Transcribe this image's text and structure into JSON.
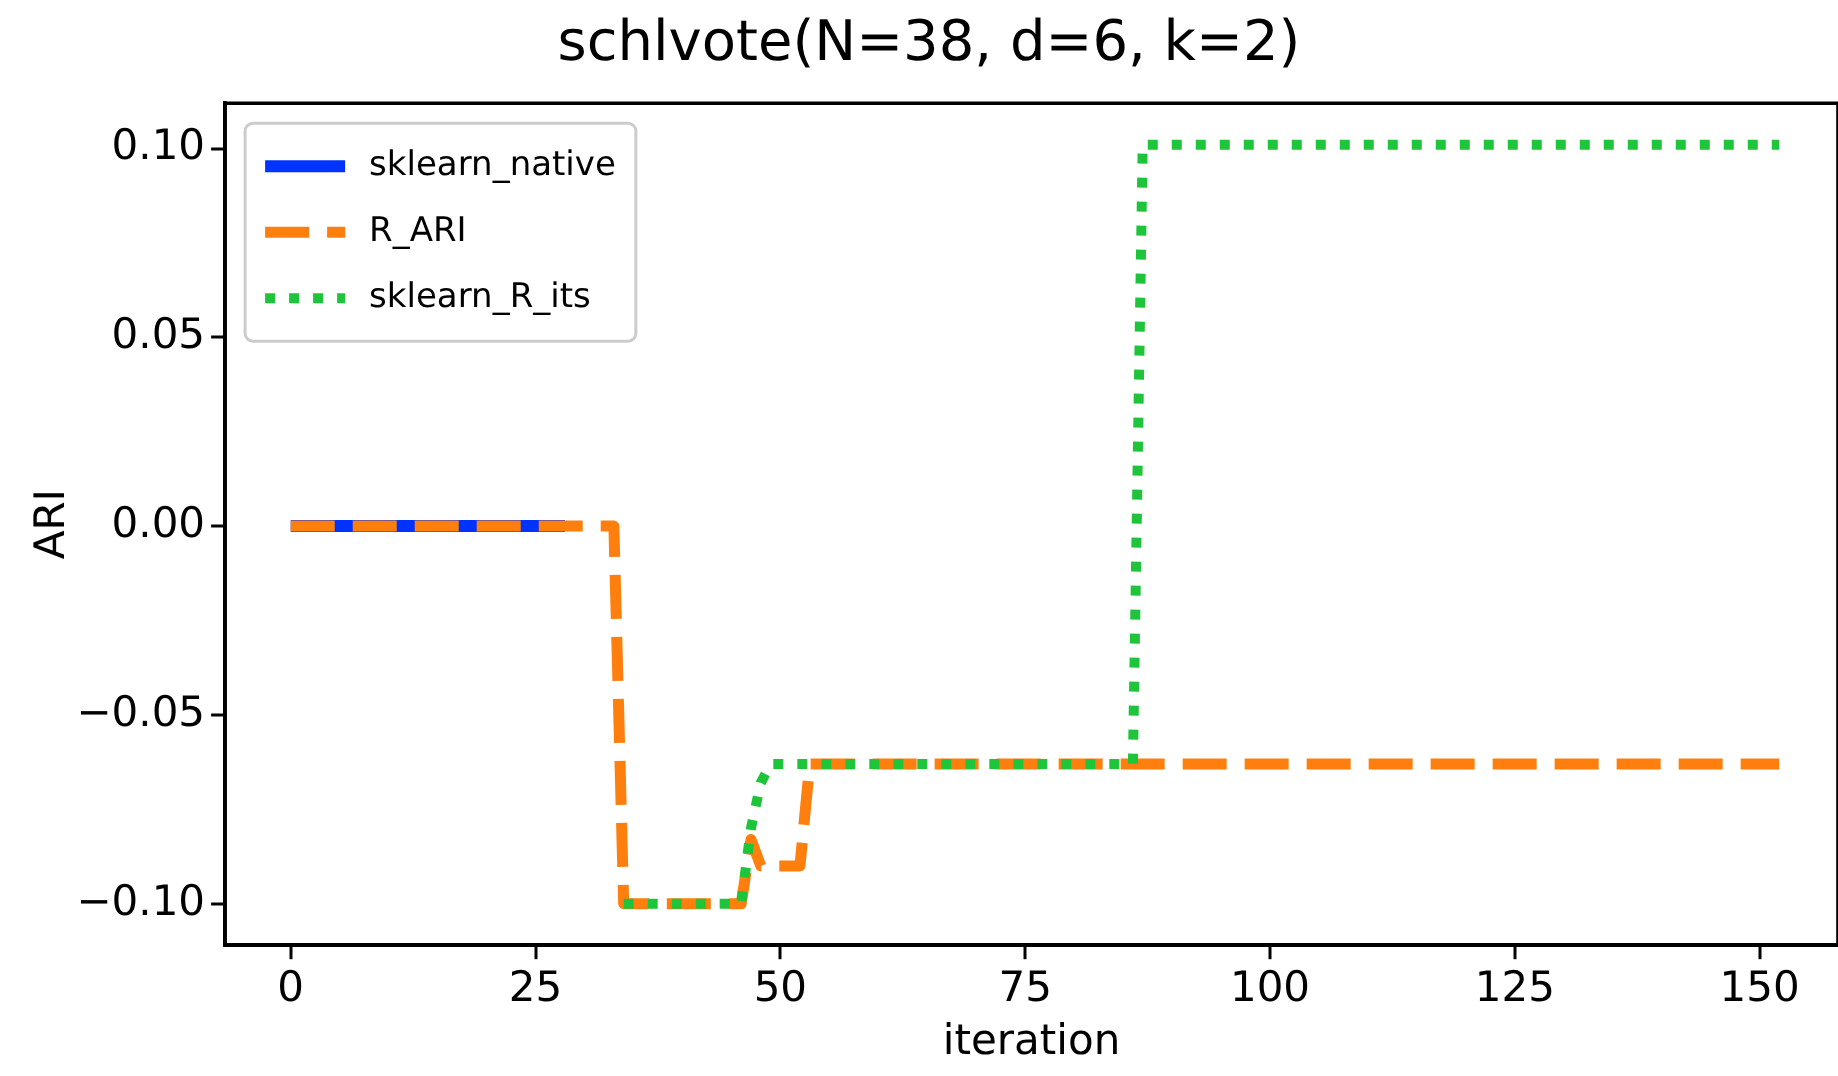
{
  "chart_data": {
    "type": "line",
    "title": "schlvote(N=38, d=6, k=2)",
    "xlabel": "iteration",
    "ylabel": "ARI",
    "xlim": [
      -6.7,
      158
    ],
    "xticks": [
      0,
      25,
      50,
      75,
      100,
      125,
      150
    ],
    "ylim": [
      -0.111,
      0.112
    ],
    "yticks": [
      {
        "value": 0.1,
        "label": "0.10"
      },
      {
        "value": 0.05,
        "label": "0.05"
      },
      {
        "value": 0,
        "label": "0.00"
      },
      {
        "value": -0.05,
        "label": "−0.05"
      },
      {
        "value": -0.1,
        "label": "−0.10"
      }
    ],
    "grid": false,
    "legend": "top left",
    "marker": "none",
    "series": [
      {
        "name": "sklearn_native",
        "color": "#0033ff",
        "line_style": "solid",
        "x": [
          0,
          28
        ],
        "values": [
          0,
          0
        ]
      },
      {
        "name": "R_ARI",
        "color": "#ff7f0e",
        "line_style": "dashed",
        "x": [
          0,
          33,
          34,
          46,
          47,
          48,
          52,
          53,
          152
        ],
        "values": [
          0,
          0,
          -0.1,
          -0.1,
          -0.083,
          -0.09,
          -0.09,
          -0.063,
          -0.063
        ]
      },
      {
        "name": "sklearn_R_its",
        "color": "#1ec43a",
        "line_style": "dotted",
        "x": [
          34,
          46,
          47,
          48,
          49,
          86,
          87,
          152
        ],
        "values": [
          -0.1,
          -0.1,
          -0.08,
          -0.068,
          -0.063,
          -0.063,
          0.101,
          0.101
        ]
      }
    ]
  }
}
